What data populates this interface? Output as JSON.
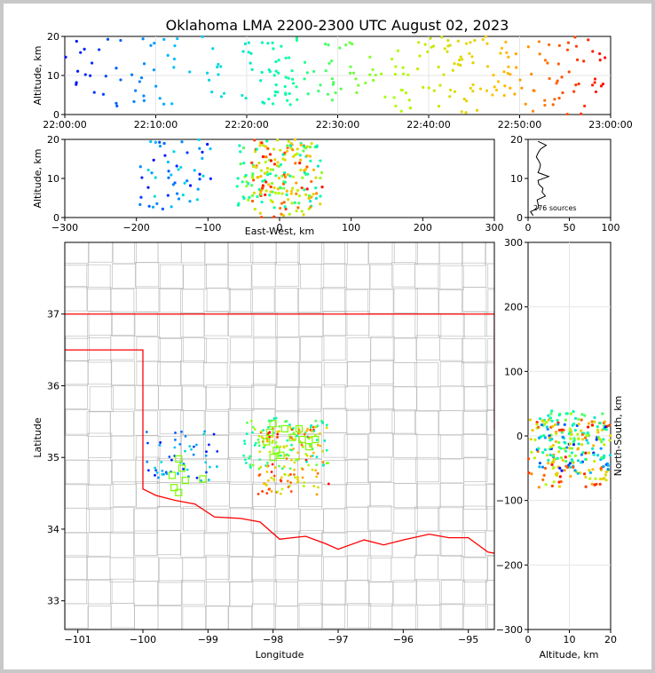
{
  "title": "Oklahoma LMA 2200-2300 UTC August 02, 2023",
  "panels": {
    "time_alt": {
      "ylabel": "Altitude, km",
      "yticks": [
        "0",
        "10",
        "20"
      ],
      "xticks": [
        "22:00:00",
        "22:10:00",
        "22:20:00",
        "22:30:00",
        "22:40:00",
        "22:50:00",
        "23:00:00"
      ]
    },
    "ew_alt": {
      "ylabel": "Altitude, km",
      "xlabel": "East-West, km",
      "yticks": [
        "0",
        "10",
        "20"
      ],
      "xticks": [
        "−300",
        "−200",
        "−100",
        "0",
        "100",
        "200",
        "300"
      ]
    },
    "hist": {
      "yticks": [
        "0",
        "10",
        "20"
      ],
      "xticks": [
        "0",
        "50",
        "100"
      ],
      "count_label": "276 sources"
    },
    "map": {
      "xlabel": "Longitude",
      "ylabel": "Latitude",
      "xticks": [
        "−101",
        "−100",
        "−99",
        "−98",
        "−97",
        "−96",
        "−95"
      ],
      "yticks": [
        "33",
        "34",
        "35",
        "36",
        "37"
      ]
    },
    "ns_alt": {
      "xlabel": "Altitude, km",
      "ylabel": "North-South, km",
      "yticks": [
        "−300",
        "−200",
        "−100",
        "0",
        "100",
        "200",
        "300"
      ],
      "xticks": [
        "0",
        "10",
        "20"
      ]
    }
  },
  "chart_data": {
    "type": "scatter",
    "source_count": 276,
    "time_range": [
      "22:00:00",
      "23:00:00"
    ],
    "altitude_range_km": [
      0,
      20
    ],
    "ew_range_km": [
      -300,
      300
    ],
    "ns_range_km": [
      -300,
      300
    ],
    "lon_range": [
      -101.2,
      -94.6
    ],
    "lat_range": [
      32.6,
      38.0
    ],
    "colormap": "time (blue to red)",
    "color_stops": [
      "#0000ff",
      "#00bfff",
      "#00ffaa",
      "#aaff00",
      "#ffc000",
      "#ff0000"
    ],
    "stations_color": "#7cfc00",
    "state_border_color": "#ff0000",
    "county_color": "#bfbfbf",
    "stations": [
      [
        -99.55,
        34.75
      ],
      [
        -99.45,
        34.98
      ],
      [
        -99.4,
        34.85
      ],
      [
        -99.35,
        34.68
      ],
      [
        -99.52,
        34.58
      ],
      [
        -99.45,
        34.51
      ],
      [
        -99.08,
        34.7
      ],
      [
        -98.0,
        35.47
      ],
      [
        -97.82,
        35.4
      ],
      [
        -98.1,
        35.22
      ],
      [
        -98.05,
        35.35
      ],
      [
        -97.95,
        35.1
      ],
      [
        -97.88,
        35.03
      ],
      [
        -97.7,
        35.28
      ],
      [
        -97.55,
        35.25
      ],
      [
        -97.45,
        35.15
      ],
      [
        -97.35,
        35.25
      ],
      [
        -97.6,
        35.4
      ],
      [
        -98.0,
        35.0
      ]
    ],
    "source_clusters": [
      {
        "t_min": [
          0,
          10
        ],
        "alt_km": [
          2,
          20
        ],
        "ew_km": [
          -200,
          -100
        ],
        "ns_km": [
          -60,
          20
        ],
        "note": "early sources west of center"
      },
      {
        "t_min": [
          20,
          35
        ],
        "alt_km": [
          2,
          20
        ],
        "ew_km": [
          -50,
          60
        ],
        "ns_km": [
          -40,
          40
        ]
      },
      {
        "t_min": [
          35,
          60
        ],
        "alt_km": [
          0,
          20
        ],
        "ew_km": [
          -40,
          60
        ],
        "ns_km": [
          -80,
          20
        ]
      }
    ]
  }
}
